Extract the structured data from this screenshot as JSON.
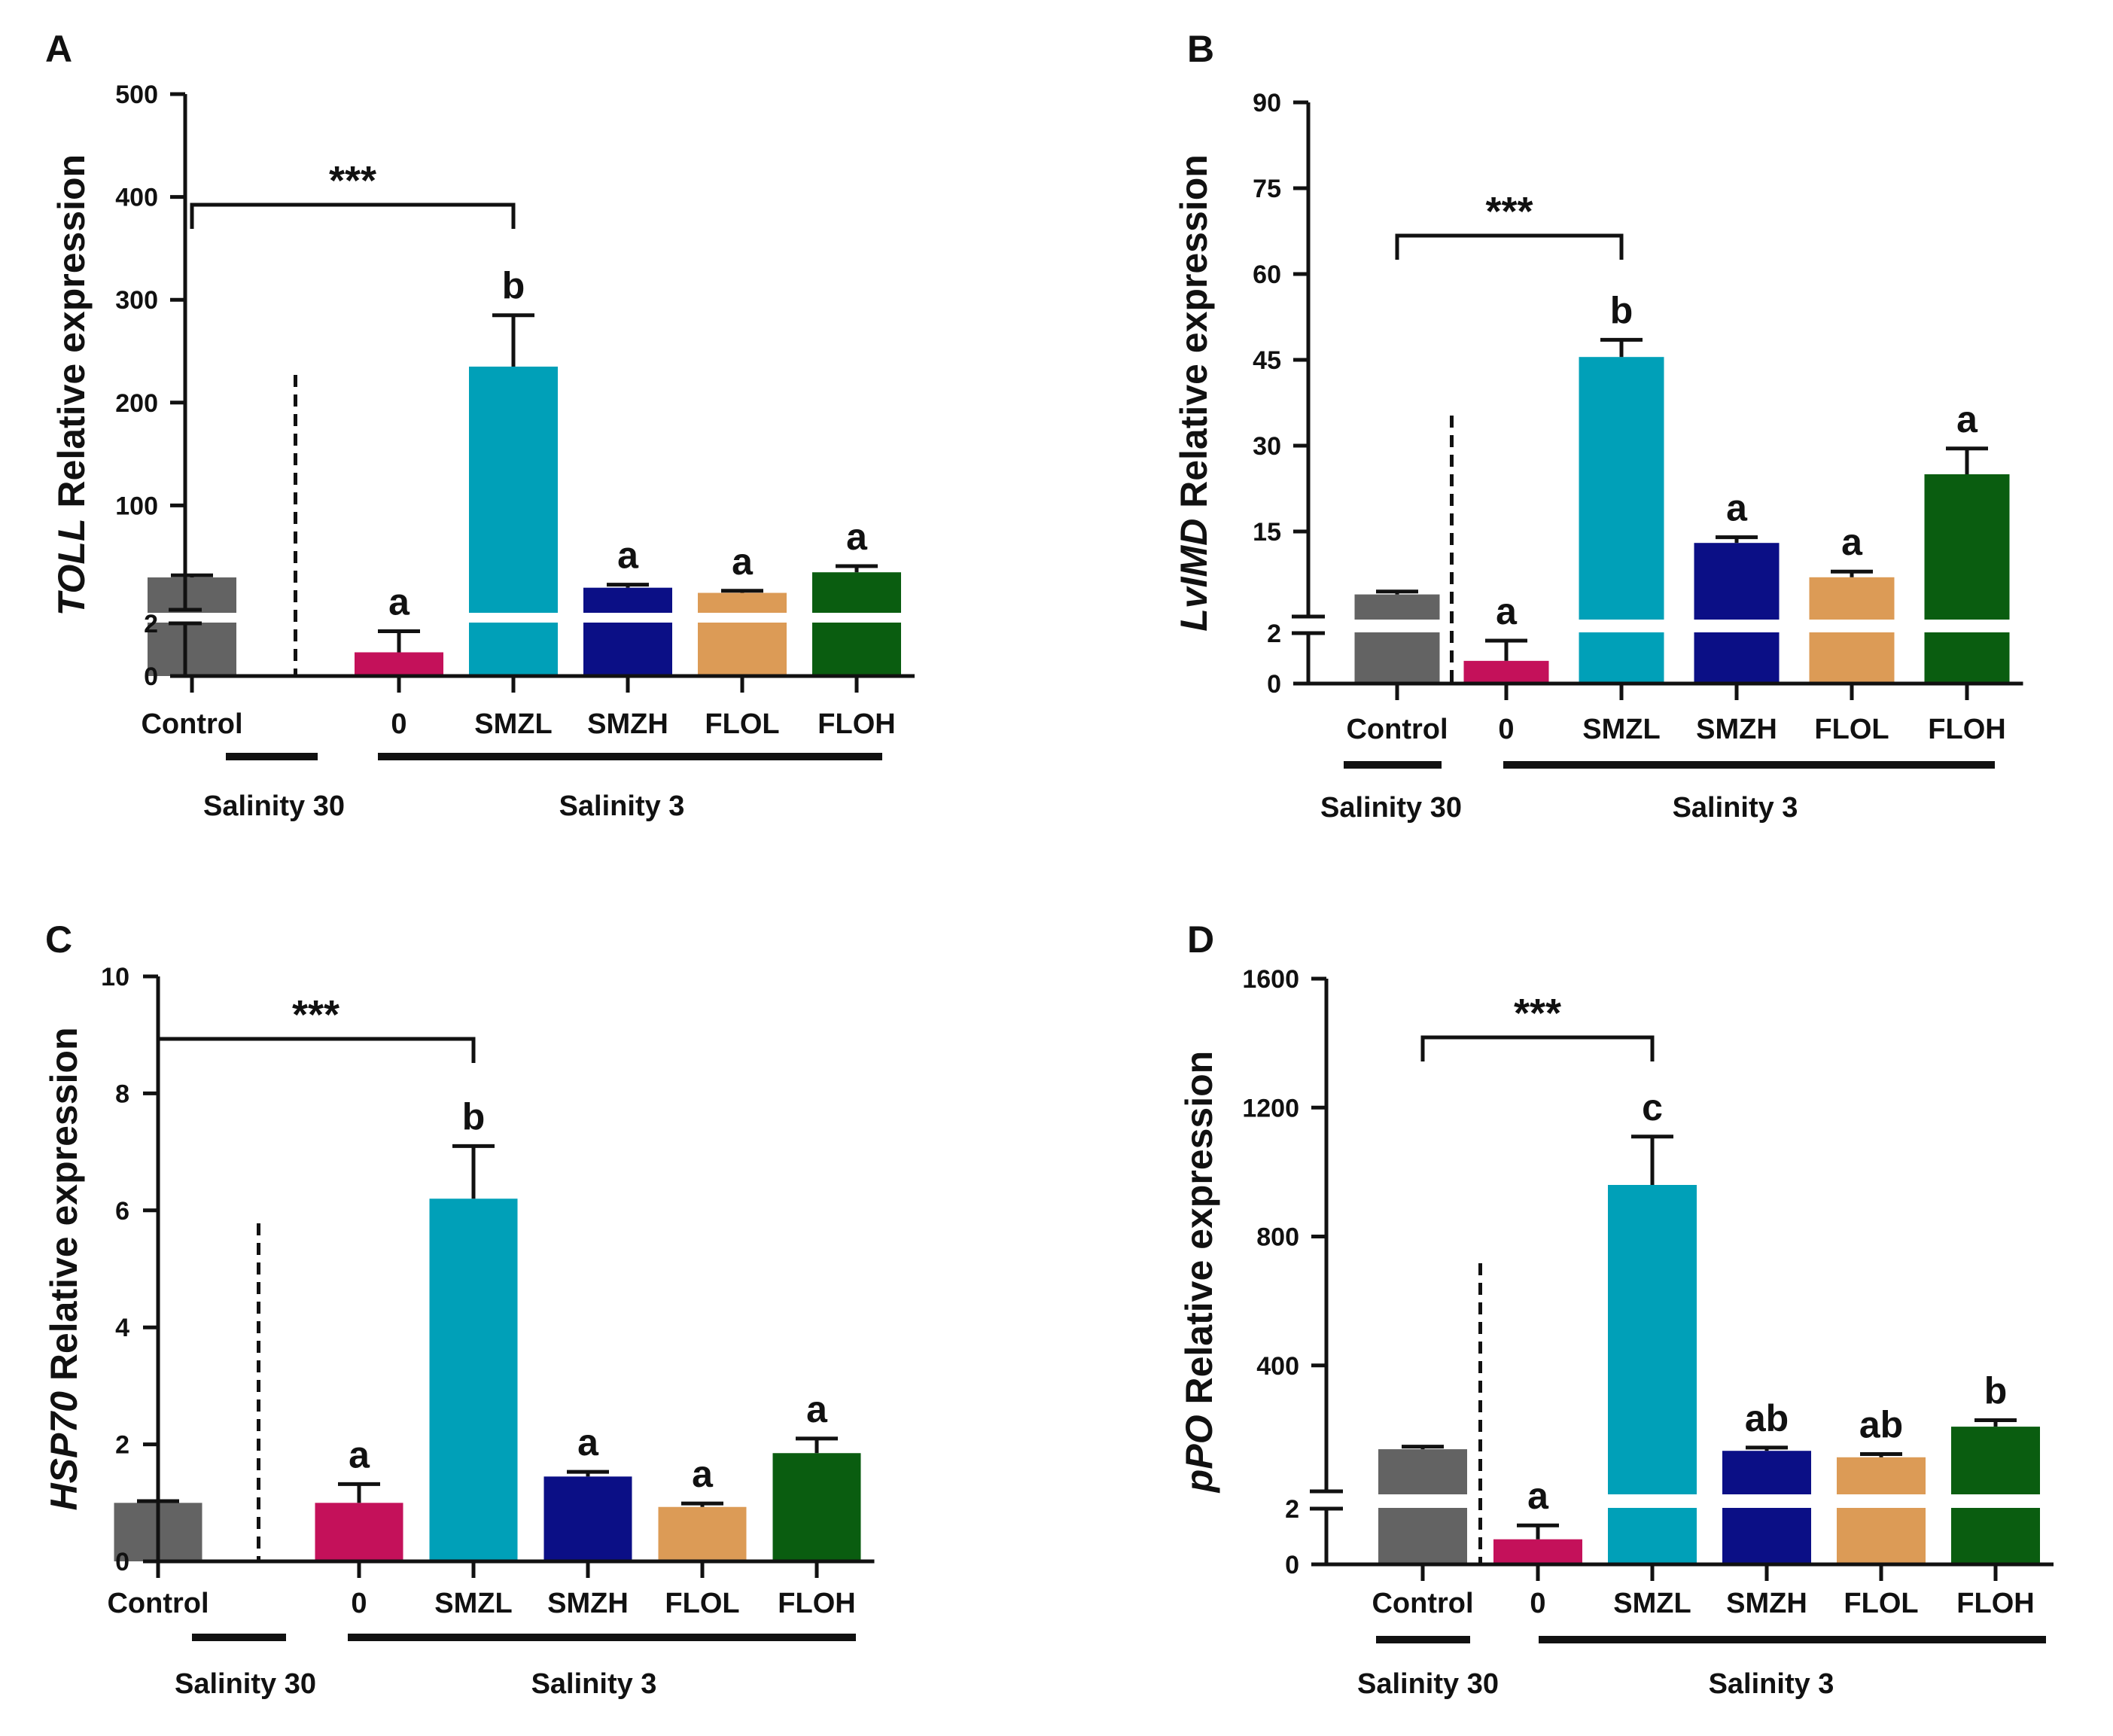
{
  "figure": {
    "colors": {
      "axis": "#111111",
      "bars": [
        "#636363",
        "#c4115a",
        "#00a0b8",
        "#0b0f86",
        "#dc9b56",
        "#0a5d10"
      ],
      "break": "#ffffff"
    }
  },
  "chart_data": [
    {
      "panel": "A",
      "type": "bar",
      "title": "",
      "ylabel_gene": "TOLL",
      "ylabel_rest": " Relative expression",
      "categories": [
        "Control",
        "0",
        "SMZL",
        "SMZH",
        "FLOL",
        "FLOH"
      ],
      "values": [
        30,
        0.9,
        235,
        20,
        15,
        35
      ],
      "errors": [
        2,
        0.8,
        50,
        3,
        2,
        6
      ],
      "letters": [
        "",
        "a",
        "b",
        "a",
        "a",
        "a"
      ],
      "axis_break": {
        "lower": [
          0,
          2
        ],
        "upper": [
          0,
          500
        ]
      },
      "yticks_lower": [
        "0",
        "2"
      ],
      "yticks_upper": [
        "100",
        "200",
        "300",
        "400",
        "500"
      ],
      "yticks_upper_values": [
        100,
        200,
        300,
        400,
        500
      ],
      "significance": {
        "label": "***",
        "from": "Control",
        "to": "SMZL"
      },
      "group1_label": "Salinity 30",
      "group2_label": "Salinity 3"
    },
    {
      "panel": "B",
      "type": "bar",
      "title": "",
      "ylabel_gene": "LvIMD",
      "ylabel_rest": " Relative expression",
      "categories": [
        "Control",
        "0",
        "SMZL",
        "SMZH",
        "FLOL",
        "FLOH"
      ],
      "values": [
        4,
        0.9,
        45.5,
        13,
        7,
        25
      ],
      "errors": [
        0.5,
        0.8,
        3,
        1,
        1,
        4.5
      ],
      "letters": [
        "",
        "a",
        "b",
        "a",
        "a",
        "a"
      ],
      "axis_break": {
        "lower": [
          0,
          2
        ],
        "upper": [
          0,
          90
        ]
      },
      "yticks_lower": [
        "0",
        "2"
      ],
      "yticks_upper": [
        "15",
        "30",
        "45",
        "60",
        "75",
        "90"
      ],
      "yticks_upper_values": [
        15,
        30,
        45,
        60,
        75,
        90
      ],
      "significance": {
        "label": "***",
        "from": "Control",
        "to": "SMZL"
      },
      "group1_label": "Salinity 30",
      "group2_label": "Salinity 3"
    },
    {
      "panel": "C",
      "type": "bar",
      "title": "",
      "ylabel_gene": "HSP70",
      "ylabel_rest": " Relative expression",
      "categories": [
        "Control",
        "0",
        "SMZL",
        "SMZH",
        "FLOL",
        "FLOH"
      ],
      "values": [
        1.0,
        1.0,
        6.2,
        1.45,
        0.93,
        1.85
      ],
      "errors": [
        0.03,
        0.32,
        0.9,
        0.08,
        0.06,
        0.25
      ],
      "letters": [
        "",
        "a",
        "b",
        "a",
        "a",
        "a"
      ],
      "ylim": [
        0,
        10
      ],
      "yticks": [
        "0",
        "2",
        "4",
        "6",
        "8",
        "10"
      ],
      "ytick_values": [
        0,
        2,
        4,
        6,
        8,
        10
      ],
      "significance": {
        "label": "***",
        "from": "Control",
        "to": "SMZL"
      },
      "group1_label": "Salinity 30",
      "group2_label": "Salinity 3"
    },
    {
      "panel": "D",
      "type": "bar",
      "title": "",
      "ylabel_gene": "pPO",
      "ylabel_rest": " Relative expression",
      "categories": [
        "Control",
        "0",
        "SMZL",
        "SMZH",
        "FLOL",
        "FLOH"
      ],
      "values": [
        140,
        0.9,
        960,
        135,
        115,
        210
      ],
      "errors": [
        8,
        0.5,
        150,
        10,
        10,
        20
      ],
      "letters": [
        "",
        "a",
        "c",
        "ab",
        "ab",
        "b"
      ],
      "axis_break": {
        "lower": [
          0,
          2
        ],
        "upper": [
          0,
          1600
        ]
      },
      "yticks_lower": [
        "0",
        "2"
      ],
      "yticks_upper": [
        "400",
        "800",
        "1200",
        "1600"
      ],
      "yticks_upper_values": [
        400,
        800,
        1200,
        1600
      ],
      "significance": {
        "label": "***",
        "from": "Control",
        "to": "SMZL"
      },
      "group1_label": "Salinity 30",
      "group2_label": "Salinity 3"
    }
  ]
}
